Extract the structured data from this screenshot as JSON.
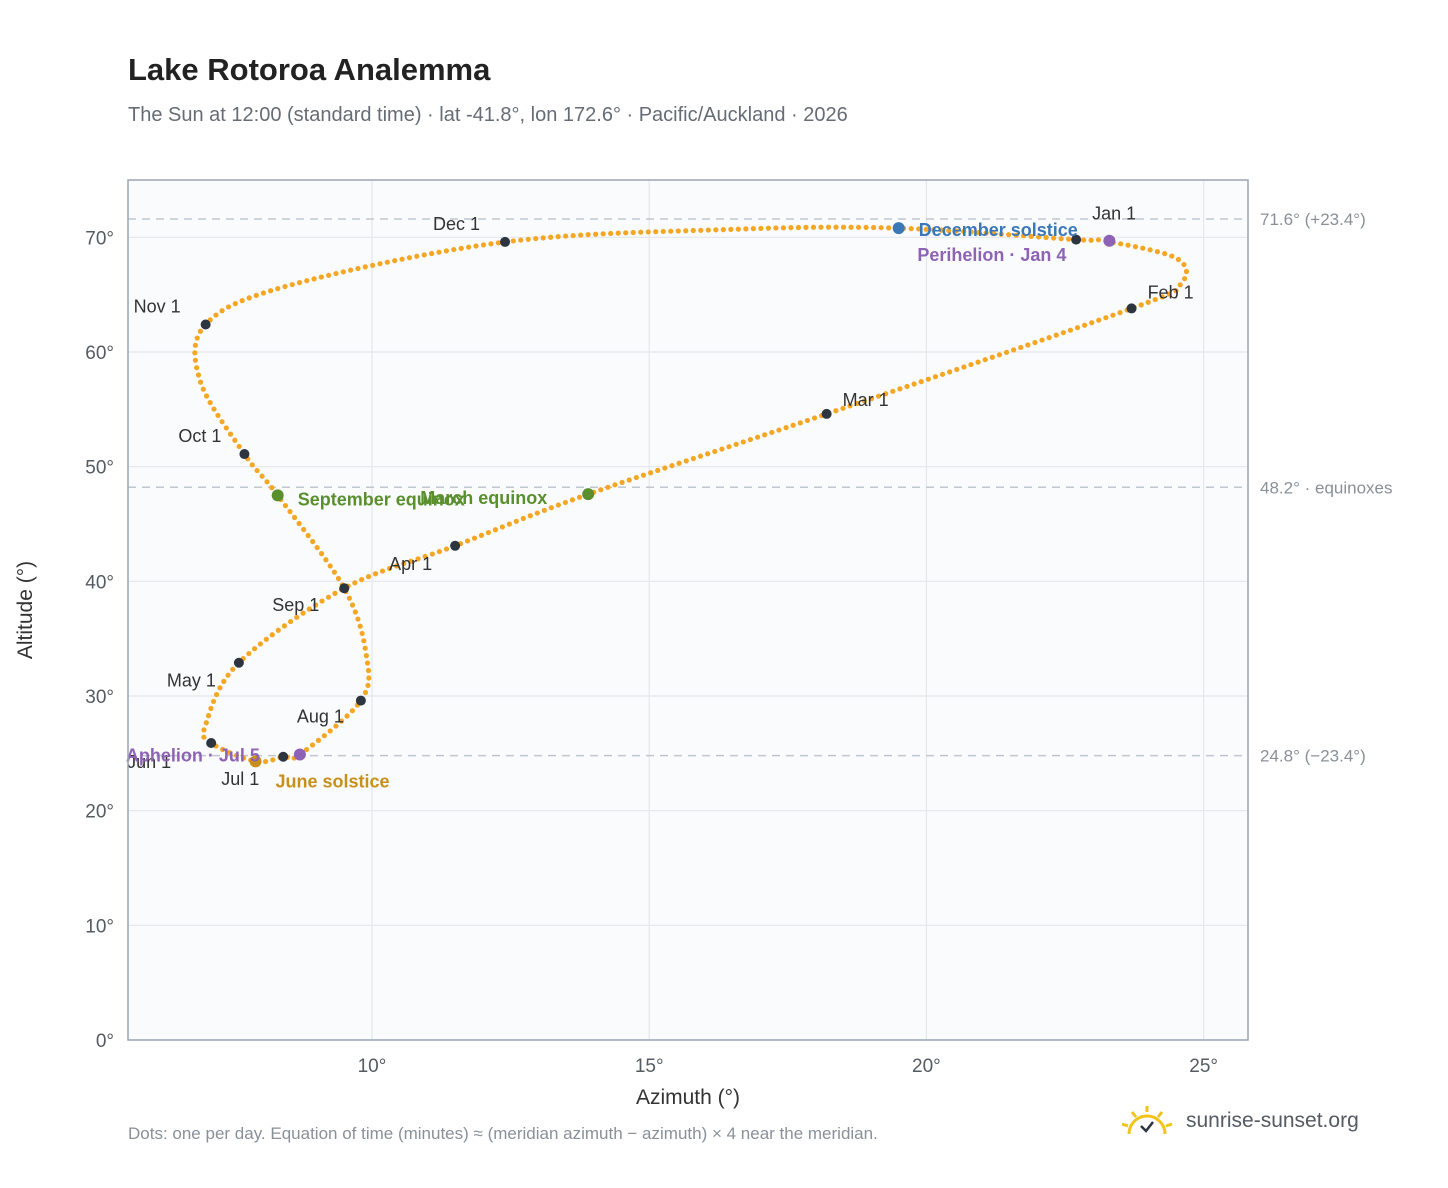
{
  "header": {
    "title": "Lake Rotoroa Analemma",
    "subtitle": "The Sun at 12:00 (standard time) · lat -41.8°, lon 172.6° · Pacific/Auckland · 2026"
  },
  "footer": {
    "note": "Dots: one per day. Equation of time (minutes) ≈ (meridian azimuth − azimuth) × 4 near the meridian.",
    "brand": "sunrise-sunset.org",
    "brand_icon": "sun-logo-icon"
  },
  "colors": {
    "path": "#f5a623",
    "month_marker": "#2d3540",
    "equinox": "#5a8f2e",
    "december_solstice": "#3a78b8",
    "june_solstice": "#c8901a",
    "aphelion_perihelion": "#8e63b5",
    "plot_bg": "#f9fbfd",
    "grid": "#e3e8ee",
    "frame": "#9aa5b4",
    "ref_line": "#c0c7d0"
  },
  "chart_data": {
    "type": "scatter",
    "xlabel": "Azimuth (°)",
    "ylabel": "Altitude (°)",
    "xlim": [
      5.6,
      25.8
    ],
    "ylim": [
      0,
      75
    ],
    "x_ticks": [
      10,
      15,
      20,
      25
    ],
    "x_tick_labels": [
      "10°",
      "15°",
      "20°",
      "25°"
    ],
    "y_ticks": [
      0,
      10,
      20,
      30,
      40,
      50,
      60,
      70
    ],
    "y_tick_labels": [
      "0°",
      "10°",
      "20°",
      "30°",
      "40°",
      "50°",
      "60°",
      "70°"
    ],
    "grid": true,
    "path_anchors": [
      {
        "x": 22.7,
        "y": 69.8
      },
      {
        "x": 23.2,
        "y": 69.7
      },
      {
        "x": 24.5,
        "y": 68.2
      },
      {
        "x": 24.6,
        "y": 66.0
      },
      {
        "x": 23.7,
        "y": 63.8
      },
      {
        "x": 18.2,
        "y": 54.6
      },
      {
        "x": 13.9,
        "y": 47.6
      },
      {
        "x": 11.5,
        "y": 43.1
      },
      {
        "x": 9.5,
        "y": 39.4
      },
      {
        "x": 7.6,
        "y": 32.9
      },
      {
        "x": 7.0,
        "y": 27.5
      },
      {
        "x": 7.1,
        "y": 25.9
      },
      {
        "x": 7.9,
        "y": 24.3
      },
      {
        "x": 8.4,
        "y": 24.7
      },
      {
        "x": 8.7,
        "y": 24.9
      },
      {
        "x": 9.8,
        "y": 29.6
      },
      {
        "x": 9.9,
        "y": 33.5
      },
      {
        "x": 9.5,
        "y": 39.4
      },
      {
        "x": 8.3,
        "y": 47.5
      },
      {
        "x": 7.7,
        "y": 51.1
      },
      {
        "x": 6.9,
        "y": 57.5
      },
      {
        "x": 7.0,
        "y": 62.4
      },
      {
        "x": 8.5,
        "y": 65.8
      },
      {
        "x": 12.4,
        "y": 69.6
      },
      {
        "x": 16.5,
        "y": 70.7
      },
      {
        "x": 19.5,
        "y": 70.8
      },
      {
        "x": 22.7,
        "y": 69.8
      }
    ],
    "months": [
      {
        "label": "Jan 1",
        "x": 22.7,
        "y": 69.8
      },
      {
        "label": "Feb 1",
        "x": 23.7,
        "y": 63.8
      },
      {
        "label": "Mar 1",
        "x": 18.2,
        "y": 54.6
      },
      {
        "label": "Apr 1",
        "x": 11.5,
        "y": 43.1
      },
      {
        "label": "May 1",
        "x": 7.6,
        "y": 32.9
      },
      {
        "label": "Jun 1",
        "x": 7.1,
        "y": 25.9
      },
      {
        "label": "Jul 1",
        "x": 8.4,
        "y": 24.7
      },
      {
        "label": "Aug 1",
        "x": 9.8,
        "y": 29.6
      },
      {
        "label": "Sep 1",
        "x": 9.5,
        "y": 39.4
      },
      {
        "label": "Oct 1",
        "x": 7.7,
        "y": 51.1
      },
      {
        "label": "Nov 1",
        "x": 7.0,
        "y": 62.4
      },
      {
        "label": "Dec 1",
        "x": 12.4,
        "y": 69.6
      }
    ],
    "events": [
      {
        "label": "December solstice",
        "x": 19.5,
        "y": 70.8,
        "color": "#3a78b8"
      },
      {
        "label": "Perihelion · Jan 4",
        "x": 23.3,
        "y": 69.7,
        "color": "#8e63b5"
      },
      {
        "label": "March equinox",
        "x": 13.9,
        "y": 47.6,
        "color": "#5a8f2e"
      },
      {
        "label": "September equinox",
        "x": 8.3,
        "y": 47.5,
        "color": "#5a8f2e"
      },
      {
        "label": "June solstice",
        "x": 7.9,
        "y": 24.3,
        "color": "#c8901a"
      },
      {
        "label": "Aphelion · Jul 5",
        "x": 8.7,
        "y": 24.9,
        "color": "#8e63b5"
      }
    ],
    "reference_lines": [
      {
        "y": 71.6,
        "label": "71.6° (+23.4°)"
      },
      {
        "y": 48.2,
        "label": "48.2° · equinoxes"
      },
      {
        "y": 24.8,
        "label": "24.8° (−23.4°)"
      }
    ]
  }
}
